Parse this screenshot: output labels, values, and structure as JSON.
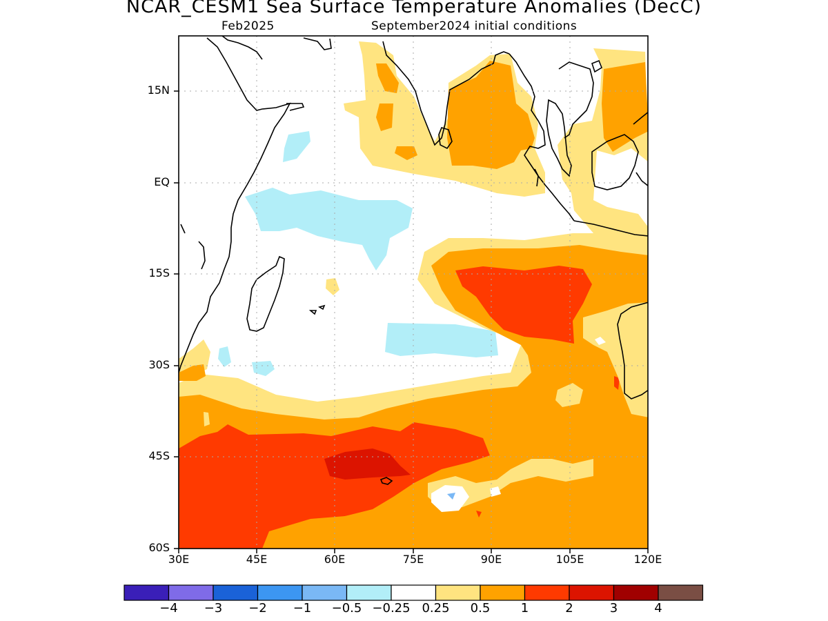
{
  "title": "NCAR_CESM1 Sea Surface Temperature Anomalies (DecC)",
  "subtitle_left": "Feb2025",
  "subtitle_right": "September2024 initial conditions",
  "axes": {
    "lat_ticks": [
      "15N",
      "EQ",
      "15S",
      "30S",
      "45S",
      "60S"
    ],
    "lon_ticks": [
      "30E",
      "45E",
      "60E",
      "75E",
      "90E",
      "105E",
      "120E"
    ]
  },
  "colorbar": {
    "colors": [
      "#3a1fb8",
      "#7f6be8",
      "#1a62d8",
      "#3c96f2",
      "#7ab8f5",
      "#b2eef8",
      "#ffffff",
      "#ffe480",
      "#ffa200",
      "#ff3a00",
      "#dc1400",
      "#a00000",
      "#7a4e44"
    ],
    "labels": [
      "−4",
      "−3",
      "−2",
      "−1",
      "−0.5",
      "−0.25",
      "0.25",
      "0.5",
      "1",
      "2",
      "3",
      "4"
    ]
  }
}
